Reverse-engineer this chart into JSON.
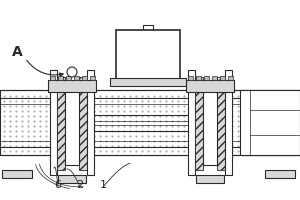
{
  "bg_color": "#ffffff",
  "line_color": "#2a2a2a",
  "gray_light": "#d8d8d8",
  "gray_mid": "#bbbbbb",
  "dot_color": "#999999",
  "label_A": "A",
  "label_6": "6",
  "label_2": "2",
  "label_1": "1",
  "font_size": 8,
  "fig_w": 3.0,
  "fig_h": 2.0,
  "dpi": 100
}
